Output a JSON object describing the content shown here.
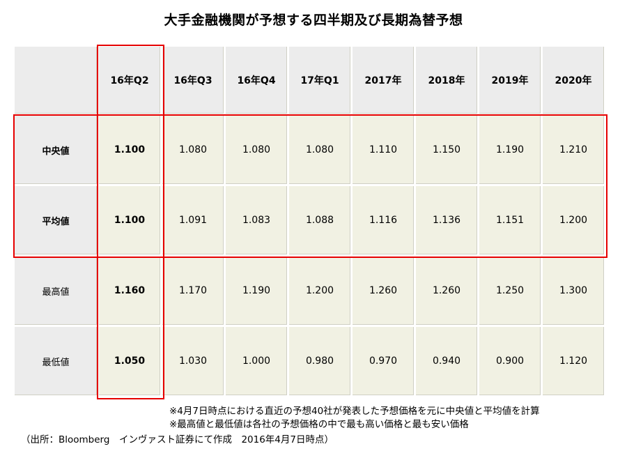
{
  "title": "大手金融機関が予想する四半期及び長期為替予想",
  "chart_data": {
    "type": "table",
    "columns": [
      "16年Q2",
      "16年Q3",
      "16年Q4",
      "17年Q1",
      "2017年",
      "2018年",
      "2019年",
      "2020年"
    ],
    "rows": [
      {
        "label": "中央値",
        "values": [
          "1.100",
          "1.080",
          "1.080",
          "1.080",
          "1.110",
          "1.150",
          "1.190",
          "1.210"
        ]
      },
      {
        "label": "平均値",
        "values": [
          "1.100",
          "1.091",
          "1.083",
          "1.088",
          "1.116",
          "1.136",
          "1.151",
          "1.200"
        ]
      },
      {
        "label": "最高値",
        "values": [
          "1.160",
          "1.170",
          "1.190",
          "1.200",
          "1.260",
          "1.260",
          "1.250",
          "1.300"
        ]
      },
      {
        "label": "最低値",
        "values": [
          "1.050",
          "1.030",
          "1.000",
          "0.980",
          "0.970",
          "0.940",
          "0.900",
          "1.120"
        ]
      }
    ],
    "highlight_color": "#e60000"
  },
  "notes": {
    "note1": "※4月7日時点における直近の予想40社が発表した予想価格を元に中央値と平均値を計算",
    "note2": "※最高値と最低値は各社の予想価格の中で最も高い価格と最も安い価格",
    "source": "（出所：Bloomberg　インヴァスト証券にて作成　2016年4月7日時点）"
  }
}
